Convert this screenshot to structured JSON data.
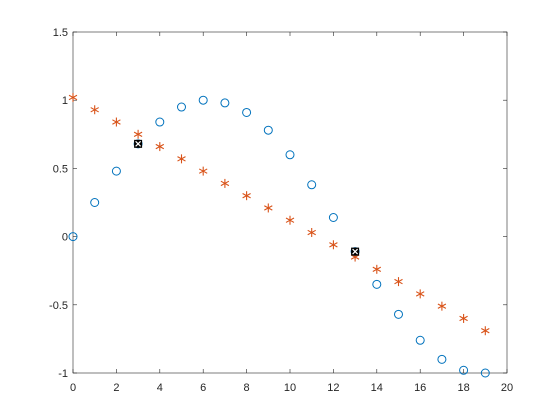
{
  "chart_data": {
    "type": "scatter",
    "x": [
      0,
      1,
      2,
      3,
      4,
      5,
      6,
      7,
      8,
      9,
      10,
      11,
      12,
      13,
      14,
      15,
      16,
      17,
      18,
      19
    ],
    "series": [
      {
        "color": "#0072bd",
        "marker": "o",
        "values": [
          0,
          0.25,
          0.48,
          0.68,
          0.84,
          0.95,
          1.0,
          0.98,
          0.91,
          0.78,
          0.6,
          0.38,
          0.14,
          -0.11,
          -0.35,
          -0.57,
          -0.76,
          -0.9,
          -0.98,
          -1.0
        ]
      },
      {
        "color": "#d95319",
        "marker": "*",
        "values": [
          1.02,
          0.93,
          0.84,
          0.75,
          0.66,
          0.57,
          0.48,
          0.39,
          0.3,
          0.21,
          0.12,
          0.03,
          -0.06,
          -0.15,
          -0.24,
          -0.33,
          -0.42,
          -0.51,
          -0.6,
          -0.69
        ]
      },
      {
        "color": "#000000",
        "marker": "x-square",
        "x": [
          3,
          13
        ],
        "values": [
          0.68,
          -0.11
        ]
      }
    ],
    "xlim": [
      0,
      20
    ],
    "xticks": [
      0,
      2,
      4,
      6,
      8,
      10,
      12,
      14,
      16,
      18,
      20
    ],
    "ylim": [
      -1,
      1.5
    ],
    "yticks": [
      -1,
      -0.5,
      0,
      0.5,
      1,
      1.5
    ],
    "grid": false
  }
}
